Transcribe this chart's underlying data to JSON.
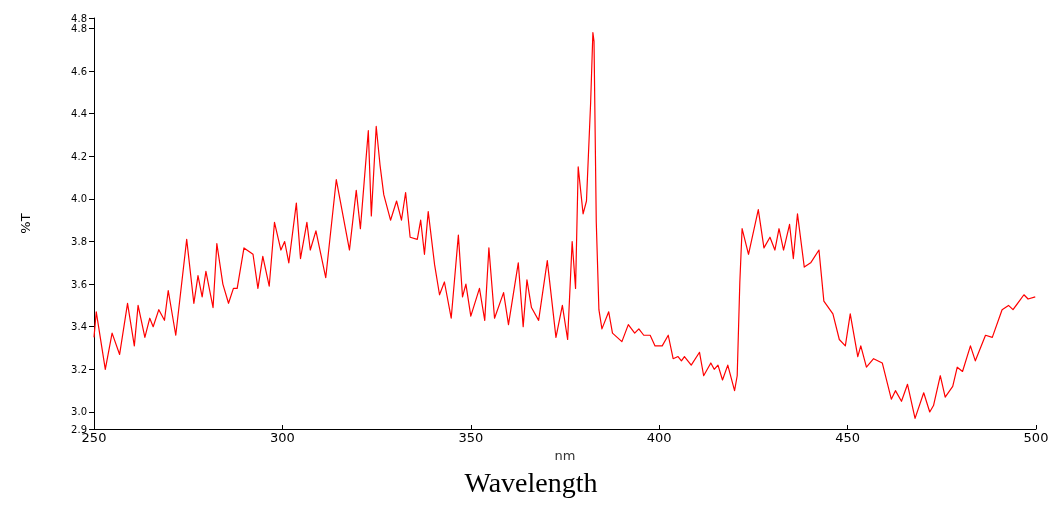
{
  "chart_data": {
    "type": "line",
    "xlabel": "nm",
    "ylabel": "%T",
    "annotations": [
      "Wavelength"
    ],
    "xlim": [
      250,
      500
    ],
    "xticks": [
      250,
      300,
      350,
      400,
      450,
      500
    ],
    "ylim": [
      2.92,
      4.849
    ],
    "yticks": [
      {
        "value": 2.92,
        "label": "2.9"
      },
      {
        "value": 3,
        "label": "3.0"
      },
      3.2,
      3.4,
      3.6,
      3.8,
      {
        "value": 4,
        "label": "4.0"
      },
      4.2,
      4.4,
      4.6,
      4.8,
      {
        "value": 4.849,
        "label": "4.8"
      }
    ],
    "grid": false,
    "marker": "none",
    "line_style": "solid",
    "series": [
      {
        "color": "#ff0000",
        "x": [
          250,
          250.6,
          253,
          254.8,
          256.8,
          258.9,
          260.7,
          261.7,
          263.5,
          264.8,
          265.7,
          267.2,
          268.7,
          269.7,
          271.7,
          274.6,
          276.5,
          277.6,
          278.7,
          279.7,
          281.6,
          282.6,
          284.2,
          285.7,
          287,
          288,
          289.8,
          292.2,
          293.5,
          294.8,
          296.5,
          297.9,
          299.6,
          300.6,
          301.7,
          303.7,
          304.8,
          306.5,
          307.4,
          308.9,
          311.5,
          314.3,
          317.8,
          319.6,
          320.7,
          321.7,
          322.8,
          323.6,
          324.9,
          325.9,
          326.9,
          328.7,
          330.3,
          331.6,
          332.7,
          333.9,
          335.8,
          336.7,
          337.7,
          338.7,
          340.4,
          341.7,
          343,
          344.8,
          346.7,
          347.8,
          348.7,
          350,
          352.3,
          353.7,
          354.8,
          356.3,
          358.7,
          360,
          362.6,
          363.9,
          364.9,
          366.1,
          368,
          370.3,
          372.6,
          374.3,
          375.7,
          376.9,
          377.8,
          378.5,
          379.8,
          380.7,
          381.8,
          382.4,
          382.7,
          383.3,
          384,
          384.8,
          386.6,
          387.6,
          390.1,
          391.8,
          393.5,
          394.6,
          395.9,
          397.6,
          398.9,
          400.8,
          402.4,
          403.7,
          405,
          405.9,
          406.7,
          408.5,
          410.7,
          411.8,
          413.7,
          414.6,
          415.6,
          416.8,
          418.2,
          420,
          420.7,
          421.4,
          422,
          423.7,
          426.3,
          427.8,
          429.4,
          430.7,
          431.8,
          433,
          434.6,
          435.6,
          436.7,
          438.5,
          440.2,
          442.4,
          443.7,
          446.1,
          447.8,
          449.4,
          450.7,
          452.7,
          453.5,
          455,
          456.9,
          459.2,
          461.6,
          462.7,
          464.3,
          465.9,
          467.9,
          470.2,
          471.8,
          472.8,
          474.6,
          475.9,
          477.9,
          479.1,
          480.5,
          482.6,
          483.9,
          486.6,
          488.4,
          491,
          492.7,
          493.9,
          496.8,
          497.9,
          499.8
        ],
        "values": [
          3.35,
          3.47,
          3.2,
          3.37,
          3.27,
          3.51,
          3.31,
          3.5,
          3.35,
          3.44,
          3.4,
          3.48,
          3.43,
          3.57,
          3.36,
          3.81,
          3.51,
          3.64,
          3.54,
          3.66,
          3.49,
          3.79,
          3.6,
          3.51,
          3.58,
          3.58,
          3.77,
          3.74,
          3.58,
          3.73,
          3.59,
          3.89,
          3.76,
          3.8,
          3.7,
          3.98,
          3.72,
          3.89,
          3.76,
          3.85,
          3.63,
          4.09,
          3.76,
          4.04,
          3.86,
          4.08,
          4.32,
          3.92,
          4.34,
          4.16,
          4.02,
          3.9,
          3.99,
          3.9,
          4.03,
          3.82,
          3.81,
          3.9,
          3.74,
          3.94,
          3.69,
          3.55,
          3.61,
          3.44,
          3.83,
          3.54,
          3.6,
          3.45,
          3.58,
          3.43,
          3.77,
          3.44,
          3.56,
          3.41,
          3.7,
          3.4,
          3.62,
          3.49,
          3.43,
          3.71,
          3.35,
          3.5,
          3.34,
          3.8,
          3.58,
          4.15,
          3.93,
          3.99,
          4.45,
          4.78,
          4.74,
          3.89,
          3.48,
          3.39,
          3.47,
          3.37,
          3.33,
          3.41,
          3.37,
          3.39,
          3.36,
          3.36,
          3.31,
          3.31,
          3.36,
          3.25,
          3.26,
          3.24,
          3.26,
          3.22,
          3.28,
          3.17,
          3.23,
          3.2,
          3.22,
          3.15,
          3.22,
          3.1,
          3.17,
          3.61,
          3.86,
          3.74,
          3.95,
          3.77,
          3.82,
          3.76,
          3.86,
          3.76,
          3.88,
          3.72,
          3.93,
          3.68,
          3.7,
          3.76,
          3.52,
          3.46,
          3.34,
          3.31,
          3.46,
          3.26,
          3.31,
          3.21,
          3.25,
          3.23,
          3.06,
          3.1,
          3.05,
          3.13,
          2.97,
          3.09,
          3,
          3.03,
          3.17,
          3.07,
          3.12,
          3.21,
          3.19,
          3.31,
          3.24,
          3.36,
          3.35,
          3.48,
          3.5,
          3.48,
          3.55,
          3.53,
          3.54
        ]
      }
    ]
  }
}
